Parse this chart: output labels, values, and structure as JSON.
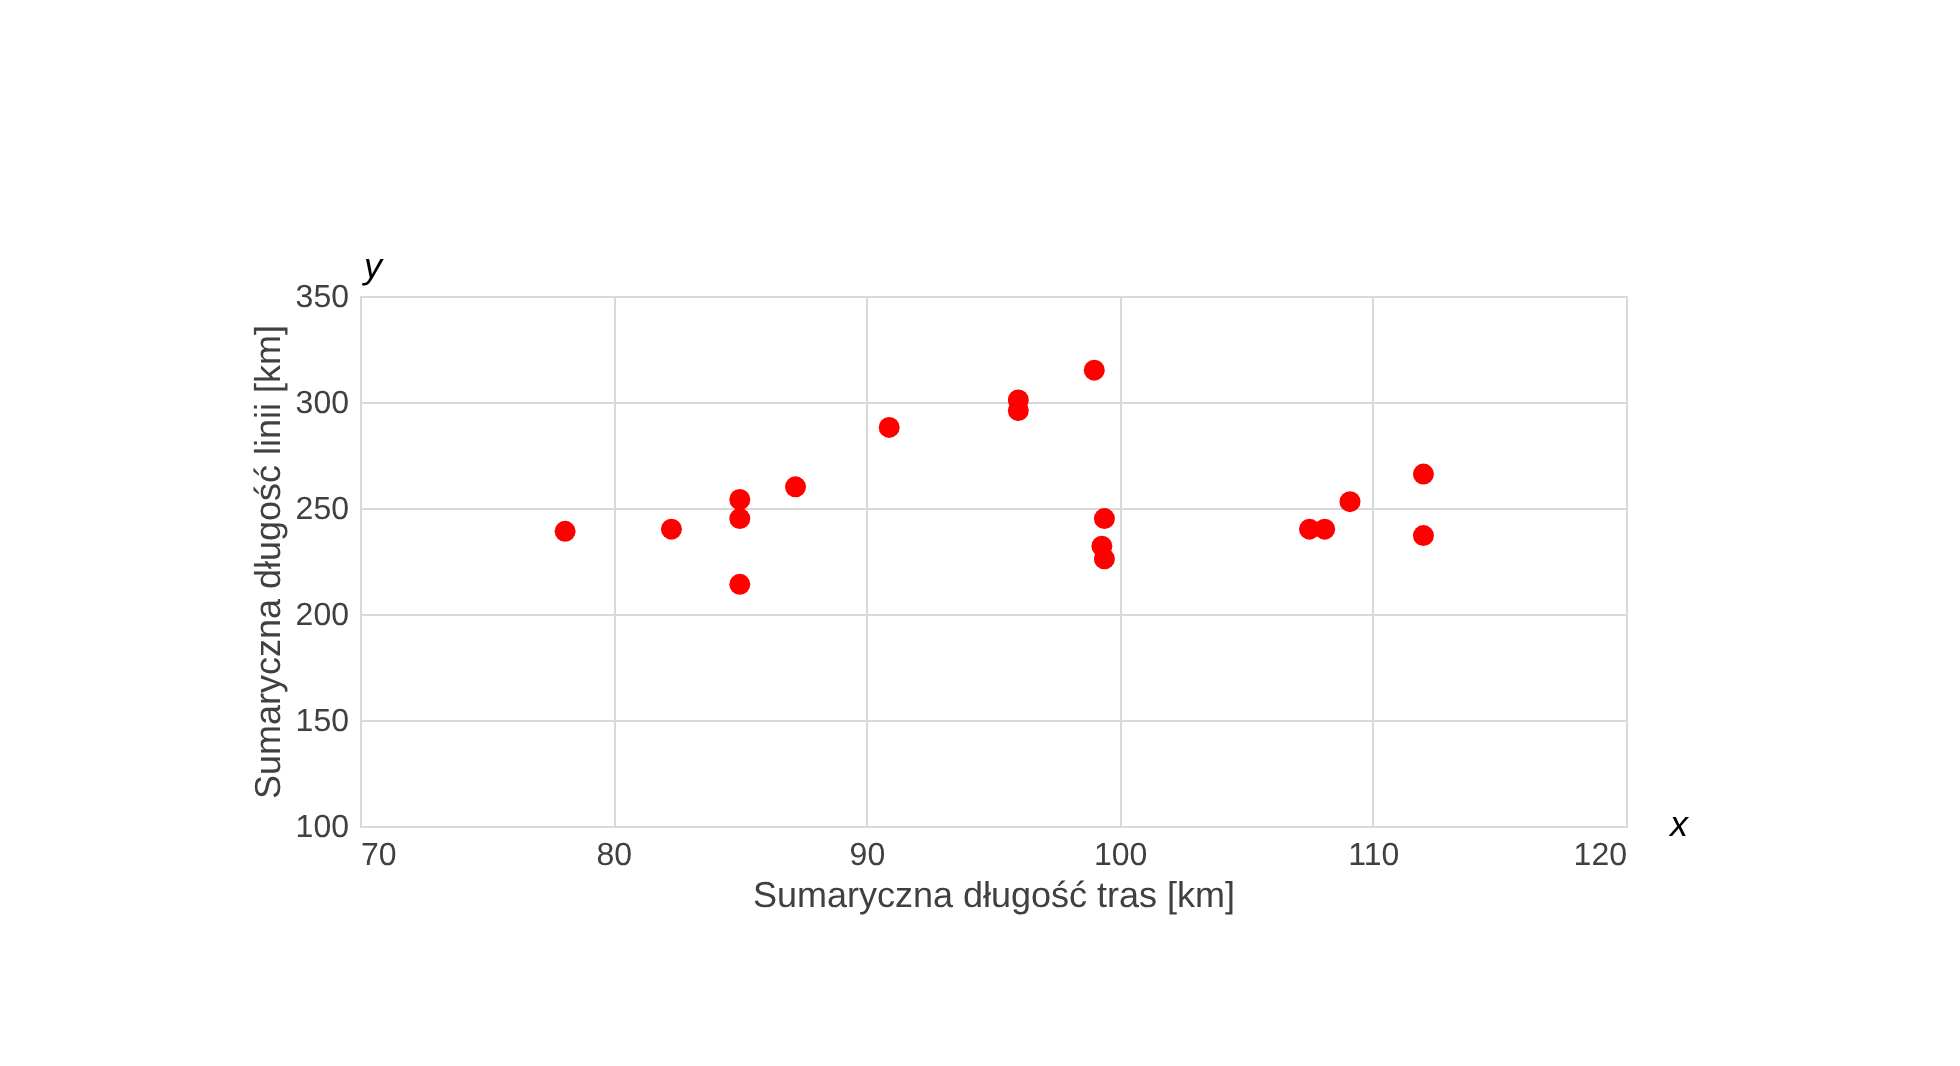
{
  "chart_data": {
    "type": "scatter",
    "xlabel": "Sumaryczna długość tras [km]",
    "ylabel": "Sumaryczna długość linii [km]",
    "annotations": [
      "y",
      "x"
    ],
    "x": [
      78.1,
      82.3,
      85,
      85,
      85,
      87.2,
      90.9,
      96,
      96,
      99,
      99.4,
      99.3,
      99.4,
      107.5,
      108.1,
      109.1,
      112,
      112
    ],
    "series": [
      {
        "color": "#ff0000",
        "values": [
          239,
          240,
          254,
          245,
          214,
          260,
          288,
          301,
          296,
          315,
          245,
          232,
          226,
          240,
          240,
          253,
          266,
          237
        ]
      }
    ],
    "xlim": [
      70,
      120
    ],
    "xticks": [
      70,
      80,
      90,
      100,
      110,
      120
    ],
    "ylim": [
      100,
      350
    ],
    "yticks": [
      100,
      150,
      200,
      250,
      300,
      350
    ],
    "grid": true,
    "marker": "circle",
    "legend": false
  }
}
